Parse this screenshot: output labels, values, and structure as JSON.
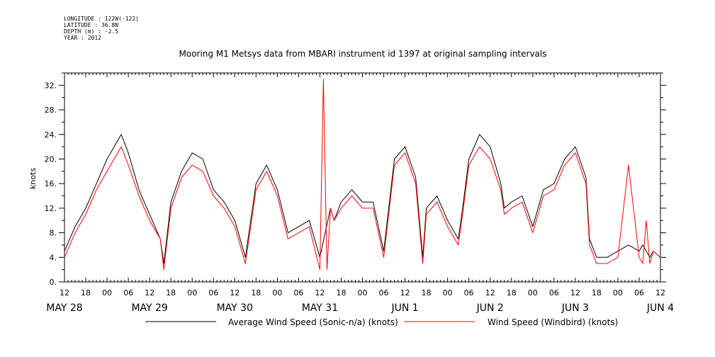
{
  "metadata": {
    "longitude": "LONGITUDE : 122W(-122)",
    "latitude": "LATITUDE : 36.8N",
    "depth": "DEPTH (m) : -2.5",
    "year": "YEAR : 2012"
  },
  "chart_data": {
    "type": "line",
    "title": "Mooring M1 Metsys data from MBARI instrument id 1397 at original sampling intervals",
    "ylabel": "knots",
    "ylim": [
      0,
      34
    ],
    "yticks": [
      0,
      4,
      8,
      12,
      16,
      20,
      24,
      28,
      32
    ],
    "ytick_labels": [
      "0.",
      "4.",
      "8.",
      "12.",
      "16.",
      "20.",
      "24.",
      "28.",
      "32."
    ],
    "xlim_hours": [
      0,
      168
    ],
    "xtick_labels": [
      "12",
      "18",
      "00",
      "06",
      "12",
      "18",
      "00",
      "06",
      "12",
      "18",
      "00",
      "06",
      "12",
      "18",
      "00",
      "06",
      "12",
      "18",
      "00",
      "06",
      "12",
      "18",
      "00",
      "06",
      "12",
      "18",
      "00",
      "06",
      "12"
    ],
    "date_labels": [
      {
        "text": "MAY 28",
        "hour": 0
      },
      {
        "text": "MAY 29",
        "hour": 24
      },
      {
        "text": "MAY 30",
        "hour": 48
      },
      {
        "text": "MAY 31",
        "hour": 72
      },
      {
        "text": "JUN  1",
        "hour": 96
      },
      {
        "text": "JUN  2",
        "hour": 120
      },
      {
        "text": "JUN  3",
        "hour": 144
      },
      {
        "text": "JUN  4",
        "hour": 168
      }
    ],
    "grid": false,
    "legend_position": "bottom",
    "series": [
      {
        "name": "Average Wind Speed (Sonic-n/a) (knots)",
        "color": "#000000",
        "x": [
          0,
          3,
          6,
          9,
          12,
          15,
          16,
          18,
          21,
          24,
          27,
          28,
          30,
          33,
          36,
          39,
          42,
          45,
          48,
          51,
          54,
          57,
          60,
          63,
          66,
          69,
          72,
          75,
          76,
          78,
          81,
          84,
          87,
          90,
          93,
          96,
          99,
          101,
          102,
          105,
          108,
          111,
          112,
          114,
          117,
          120,
          123,
          124,
          126,
          129,
          132,
          135,
          138,
          141,
          144,
          147,
          148,
          150,
          153,
          156,
          159,
          162,
          163,
          164,
          165,
          166,
          168
        ],
        "values": [
          5,
          9,
          12,
          16,
          20,
          23,
          24,
          21,
          15,
          11,
          7,
          3,
          13,
          18,
          21,
          20,
          15,
          13,
          10,
          4,
          16,
          19,
          15,
          8,
          9,
          10,
          4,
          12,
          10,
          13,
          15,
          13,
          13,
          5,
          20,
          22,
          17,
          4,
          12,
          14,
          10,
          7,
          11,
          20,
          24,
          22,
          16,
          12,
          13,
          14,
          9,
          15,
          16,
          20,
          22,
          17,
          7,
          4,
          4,
          5,
          6,
          5,
          6,
          5,
          4,
          5,
          4
        ]
      },
      {
        "name": "Wind Speed (Windbird) (knots)",
        "color": "#ff0000",
        "x": [
          0,
          3,
          6,
          9,
          12,
          15,
          16,
          18,
          21,
          24,
          27,
          28,
          30,
          33,
          36,
          39,
          42,
          45,
          48,
          51,
          54,
          57,
          60,
          63,
          66,
          69,
          72,
          73,
          74,
          75,
          76,
          78,
          81,
          84,
          87,
          90,
          93,
          96,
          99,
          101,
          102,
          105,
          108,
          111,
          112,
          114,
          117,
          120,
          123,
          124,
          126,
          129,
          132,
          135,
          138,
          141,
          144,
          147,
          148,
          150,
          153,
          156,
          159,
          162,
          163,
          164,
          165,
          166,
          168
        ],
        "values": [
          4,
          8,
          11,
          15,
          18,
          21,
          22,
          19,
          14,
          10,
          7,
          2,
          12,
          17,
          19,
          18,
          14,
          12,
          9,
          3,
          15,
          18,
          14,
          7,
          8,
          9,
          2,
          33,
          2,
          12,
          10,
          12,
          14,
          12,
          12,
          4,
          19,
          21,
          16,
          3,
          11,
          13,
          9,
          6,
          10,
          19,
          22,
          20,
          15,
          11,
          12,
          13,
          8,
          14,
          15,
          19,
          21,
          16,
          6,
          3,
          3,
          4,
          19,
          4,
          3,
          10,
          3,
          5,
          4
        ]
      }
    ]
  }
}
